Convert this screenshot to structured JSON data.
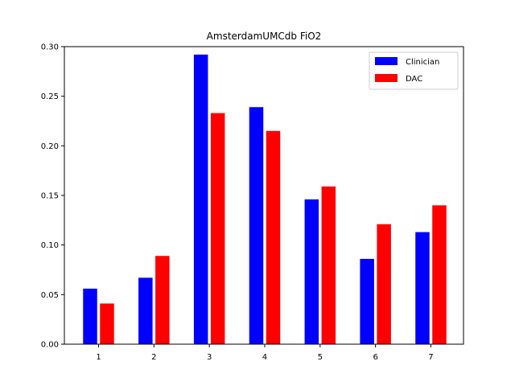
{
  "chart_data": {
    "type": "bar",
    "title": "AmsterdamUMCdb FiO2",
    "xlabel": "",
    "ylabel": "",
    "categories": [
      "1",
      "2",
      "3",
      "4",
      "5",
      "6",
      "7"
    ],
    "series": [
      {
        "name": "Clinician",
        "color": "#0000ff",
        "values": [
          0.056,
          0.067,
          0.292,
          0.239,
          0.146,
          0.086,
          0.113
        ]
      },
      {
        "name": "DAC",
        "color": "#ff0000",
        "values": [
          0.041,
          0.089,
          0.233,
          0.215,
          0.159,
          0.121,
          0.14
        ]
      }
    ],
    "ylim": [
      0,
      0.3
    ],
    "yticks": [
      "0.00",
      "0.05",
      "0.10",
      "0.15",
      "0.20",
      "0.25",
      "0.30"
    ],
    "grid": false,
    "legend_position": "top-right"
  }
}
